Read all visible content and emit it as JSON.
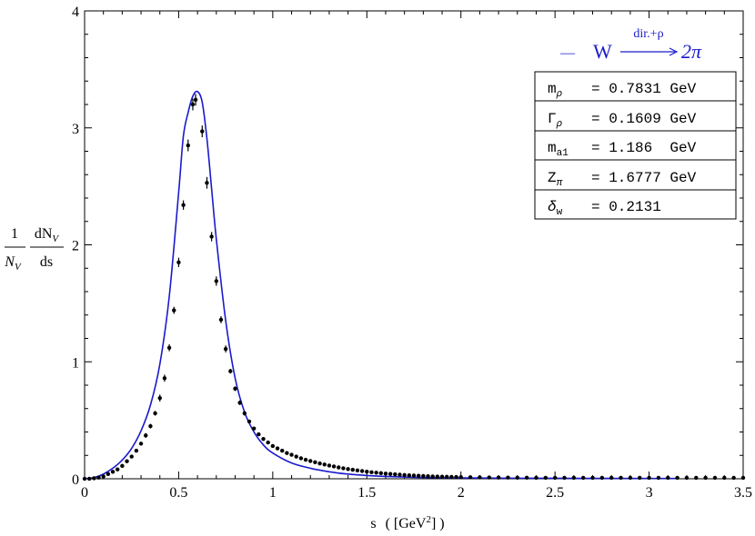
{
  "chart_data": {
    "type": "scatter",
    "xlabel_prefix": "s",
    "xlabel_unit": "( [GeV",
    "xlabel_sup": "2",
    "xlabel_suffix": "] )",
    "ylabel": {
      "frac1_num": "1",
      "frac1_den": "N",
      "frac1_den_sub": "V",
      "frac2_num": "dN",
      "frac2_num_sub": "V",
      "frac2_den": "ds"
    },
    "xlim": [
      0,
      3.5
    ],
    "ylim": [
      0,
      4
    ],
    "x_ticks": [
      "0",
      "0.5",
      "1",
      "1.5",
      "2",
      "2.5",
      "3",
      "3.5"
    ],
    "y_ticks": [
      "0",
      "1",
      "2",
      "3",
      "4"
    ],
    "legend": {
      "position": "top-right",
      "dash": "—",
      "W": "W",
      "over": "dir.+ρ",
      "right": "2π",
      "color": "#1a1acc"
    },
    "params": [
      {
        "name": "m",
        "sub": "ρ",
        "value": "= 0.7831 GeV"
      },
      {
        "name": "Γ",
        "sub": "ρ",
        "value": "= 0.1609 GeV"
      },
      {
        "name": "m",
        "sub": "a1",
        "value": "= 1.186  GeV"
      },
      {
        "name": "Z",
        "sub": "π",
        "value": "= 1.6777 GeV"
      },
      {
        "name": "δ",
        "sub": "w",
        "value": "= 0.2131"
      }
    ],
    "series": [
      {
        "type": "scatter_errorbars",
        "color": "#000000",
        "points": [
          [
            0.0,
            0.0,
            0
          ],
          [
            0.025,
            0.0,
            0
          ],
          [
            0.05,
            0.004,
            0
          ],
          [
            0.075,
            0.01,
            0
          ],
          [
            0.1,
            0.02,
            0
          ],
          [
            0.125,
            0.04,
            0
          ],
          [
            0.15,
            0.06,
            0
          ],
          [
            0.175,
            0.08,
            0
          ],
          [
            0.2,
            0.11,
            0
          ],
          [
            0.225,
            0.15,
            0
          ],
          [
            0.25,
            0.19,
            0
          ],
          [
            0.275,
            0.24,
            0
          ],
          [
            0.3,
            0.3,
            0
          ],
          [
            0.325,
            0.37,
            0.02
          ],
          [
            0.35,
            0.45,
            0.02
          ],
          [
            0.375,
            0.56,
            0.02
          ],
          [
            0.4,
            0.69,
            0.03
          ],
          [
            0.425,
            0.86,
            0.03
          ],
          [
            0.45,
            1.12,
            0.03
          ],
          [
            0.475,
            1.44,
            0.03
          ],
          [
            0.5,
            1.85,
            0.04
          ],
          [
            0.525,
            2.34,
            0.04
          ],
          [
            0.55,
            2.85,
            0.05
          ],
          [
            0.575,
            3.2,
            0.05
          ],
          [
            0.59,
            3.24,
            0.05
          ],
          [
            0.625,
            2.97,
            0.05
          ],
          [
            0.65,
            2.53,
            0.05
          ],
          [
            0.675,
            2.07,
            0.04
          ],
          [
            0.7,
            1.69,
            0.04
          ],
          [
            0.725,
            1.36,
            0.03
          ],
          [
            0.75,
            1.11,
            0.03
          ],
          [
            0.775,
            0.92,
            0.02
          ],
          [
            0.8,
            0.77,
            0.02
          ],
          [
            0.825,
            0.65,
            0.02
          ],
          [
            0.85,
            0.56,
            0.02
          ],
          [
            0.875,
            0.49,
            0
          ],
          [
            0.9,
            0.43,
            0
          ],
          [
            0.925,
            0.38,
            0
          ],
          [
            0.95,
            0.34,
            0
          ],
          [
            0.975,
            0.31,
            0
          ],
          [
            1.0,
            0.28,
            0
          ],
          [
            1.025,
            0.26,
            0
          ],
          [
            1.05,
            0.24,
            0
          ],
          [
            1.075,
            0.22,
            0
          ],
          [
            1.1,
            0.205,
            0
          ],
          [
            1.125,
            0.19,
            0
          ],
          [
            1.15,
            0.175,
            0
          ],
          [
            1.175,
            0.163,
            0
          ],
          [
            1.2,
            0.152,
            0
          ],
          [
            1.225,
            0.141,
            0
          ],
          [
            1.25,
            0.131,
            0
          ],
          [
            1.275,
            0.122,
            0
          ],
          [
            1.3,
            0.113,
            0
          ],
          [
            1.325,
            0.105,
            0
          ],
          [
            1.35,
            0.097,
            0
          ],
          [
            1.375,
            0.09,
            0
          ],
          [
            1.4,
            0.083,
            0
          ],
          [
            1.425,
            0.077,
            0
          ],
          [
            1.45,
            0.071,
            0
          ],
          [
            1.475,
            0.066,
            0
          ],
          [
            1.5,
            0.061,
            0
          ],
          [
            1.525,
            0.056,
            0
          ],
          [
            1.55,
            0.052,
            0
          ],
          [
            1.575,
            0.048,
            0
          ],
          [
            1.6,
            0.044,
            0
          ],
          [
            1.625,
            0.041,
            0
          ],
          [
            1.65,
            0.038,
            0
          ],
          [
            1.675,
            0.035,
            0
          ],
          [
            1.7,
            0.032,
            0
          ],
          [
            1.725,
            0.03,
            0
          ],
          [
            1.75,
            0.028,
            0
          ],
          [
            1.775,
            0.026,
            0
          ],
          [
            1.8,
            0.024,
            0
          ],
          [
            1.825,
            0.022,
            0
          ],
          [
            1.85,
            0.02,
            0
          ],
          [
            1.875,
            0.019,
            0
          ],
          [
            1.9,
            0.018,
            0
          ],
          [
            1.925,
            0.017,
            0
          ],
          [
            1.95,
            0.016,
            0
          ],
          [
            1.975,
            0.015,
            0
          ],
          [
            2.0,
            0.014,
            0
          ],
          [
            2.05,
            0.013,
            0
          ],
          [
            2.1,
            0.012,
            0
          ],
          [
            2.15,
            0.011,
            0
          ],
          [
            2.2,
            0.01,
            0
          ],
          [
            2.25,
            0.01,
            0
          ],
          [
            2.3,
            0.009,
            0
          ],
          [
            2.35,
            0.009,
            0
          ],
          [
            2.4,
            0.008,
            0
          ],
          [
            2.45,
            0.008,
            0
          ],
          [
            2.5,
            0.008,
            0
          ],
          [
            2.55,
            0.008,
            0
          ],
          [
            2.6,
            0.008,
            0
          ],
          [
            2.65,
            0.008,
            0
          ],
          [
            2.7,
            0.008,
            0
          ],
          [
            2.75,
            0.008,
            0
          ],
          [
            2.8,
            0.008,
            0
          ],
          [
            2.85,
            0.008,
            0
          ],
          [
            2.9,
            0.008,
            0
          ],
          [
            2.95,
            0.008,
            0
          ],
          [
            3.0,
            0.008,
            0
          ],
          [
            3.05,
            0.008,
            0
          ],
          [
            3.1,
            0.008,
            0
          ],
          [
            3.15,
            0.008,
            0
          ],
          [
            3.2,
            0.008,
            0
          ],
          [
            3.25,
            0.008,
            0
          ],
          [
            3.3,
            0.008,
            0
          ],
          [
            3.35,
            0.008,
            0
          ],
          [
            3.4,
            0.008,
            0
          ],
          [
            3.45,
            0.008,
            0
          ],
          [
            3.5,
            0.008,
            0
          ]
        ]
      },
      {
        "type": "line",
        "color": "#1a1acc",
        "x": [
          0.0,
          0.05,
          0.1,
          0.15,
          0.2,
          0.25,
          0.3,
          0.35,
          0.4,
          0.45,
          0.5,
          0.525,
          0.55,
          0.575,
          0.6,
          0.625,
          0.65,
          0.675,
          0.7,
          0.75,
          0.8,
          0.85,
          0.9,
          0.95,
          1.0,
          1.1,
          1.2,
          1.3,
          1.4,
          1.5,
          1.6,
          1.7,
          1.8,
          2.0,
          2.5,
          3.0,
          3.15
        ],
        "y": [
          0.0,
          0.01,
          0.04,
          0.09,
          0.16,
          0.26,
          0.41,
          0.63,
          0.98,
          1.56,
          2.45,
          2.93,
          3.13,
          3.27,
          3.31,
          3.22,
          2.91,
          2.48,
          2.05,
          1.35,
          0.86,
          0.57,
          0.4,
          0.29,
          0.22,
          0.135,
          0.09,
          0.06,
          0.04,
          0.028,
          0.02,
          0.015,
          0.011,
          0.007,
          0.004,
          0.003,
          0.003
        ]
      }
    ]
  }
}
